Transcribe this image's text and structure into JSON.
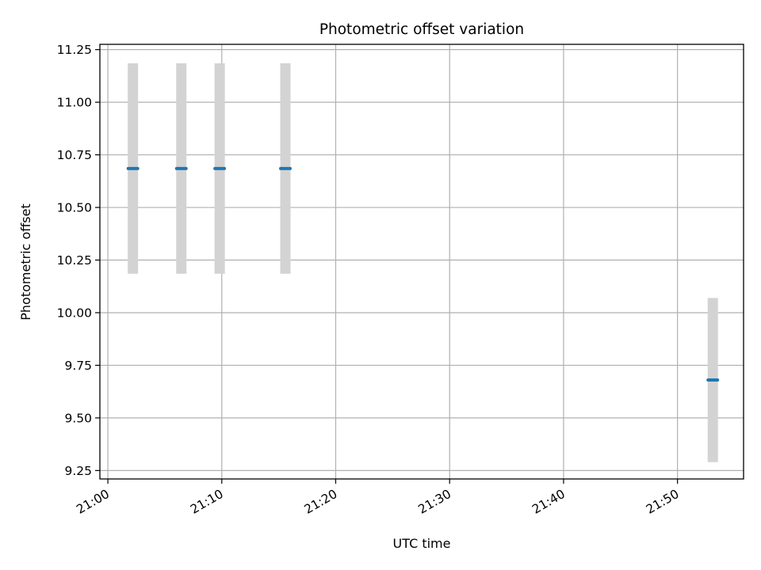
{
  "chart_data": {
    "type": "scatter",
    "title": "Photometric offset variation",
    "xlabel": "UTC time",
    "ylabel": "Photometric offset",
    "x_axis_type": "time",
    "xlim": [
      "20:59:18",
      "21:55:48"
    ],
    "ylim": [
      9.21,
      11.275
    ],
    "x_ticks": [
      "21:00",
      "21:10",
      "21:20",
      "21:30",
      "21:40",
      "21:50"
    ],
    "y_ticks": [
      "9.25",
      "9.50",
      "9.75",
      "10.00",
      "10.25",
      "10.50",
      "10.75",
      "11.00",
      "11.25"
    ],
    "grid": true,
    "x_tick_rotation_deg": 30,
    "series": [
      {
        "marker_color": "#1f77b4",
        "errorbar_color": "#d3d3d3",
        "points": [
          {
            "x": "21:02:12",
            "y": 10.685,
            "yerr": 0.5
          },
          {
            "x": "21:06:27",
            "y": 10.685,
            "yerr": 0.5
          },
          {
            "x": "21:09:49",
            "y": 10.685,
            "yerr": 0.5
          },
          {
            "x": "21:15:35",
            "y": 10.685,
            "yerr": 0.5
          },
          {
            "x": "21:53:06",
            "y": 9.68,
            "yerr": 0.39
          }
        ]
      }
    ]
  }
}
